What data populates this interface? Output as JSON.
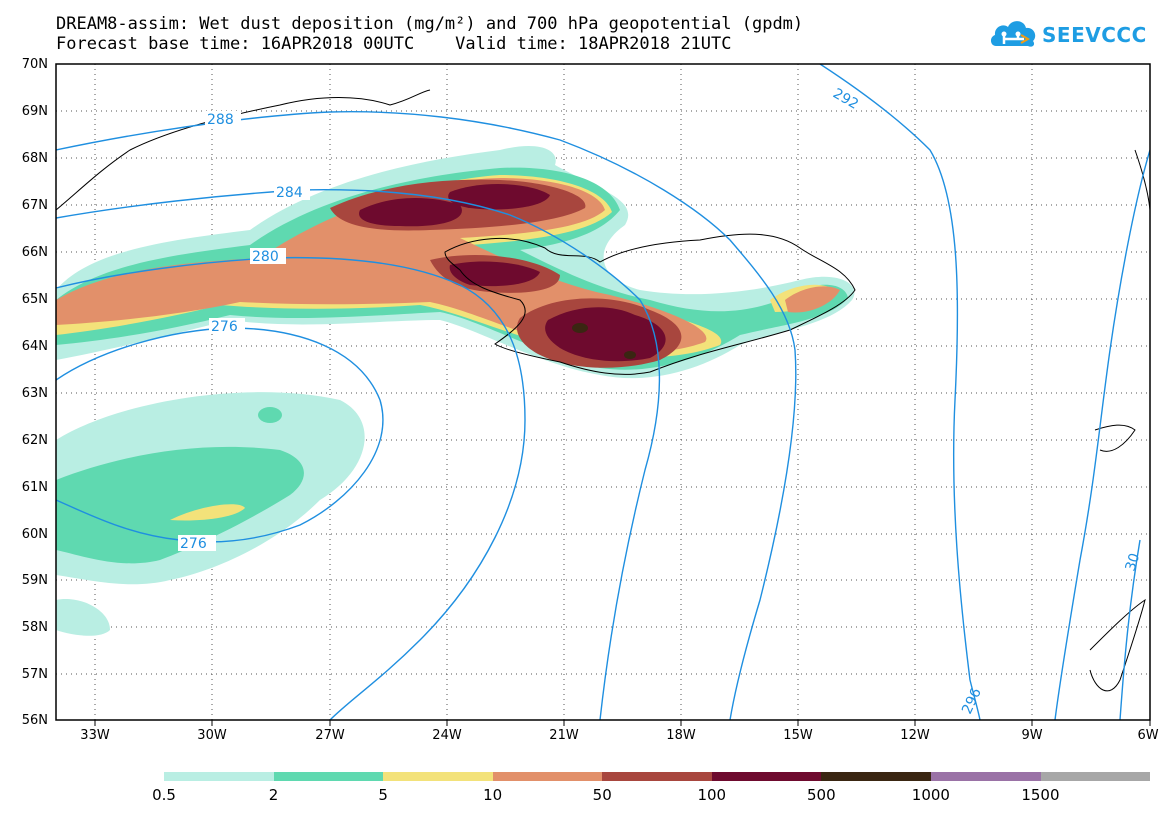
{
  "title": {
    "line1": "DREAM8-assim: Wet dust deposition (mg/m²) and 700 hPa geopotential (gpdm)",
    "line2": "Forecast base time: 16APR2018 00UTC    Valid time: 18APR2018 21UTC"
  },
  "logo": {
    "text": "SEEVCCC",
    "icon": "cloud-icon",
    "color": "#1e9de3"
  },
  "map": {
    "lat_labels": [
      "70N",
      "69N",
      "68N",
      "67N",
      "66N",
      "65N",
      "64N",
      "63N",
      "62N",
      "61N",
      "60N",
      "59N",
      "58N",
      "57N",
      "56N"
    ],
    "lon_labels": [
      "33W",
      "30W",
      "27W",
      "24W",
      "21W",
      "18W",
      "15W",
      "12W",
      "9W",
      "6W"
    ],
    "contour_labels": [
      "288",
      "284",
      "280",
      "276",
      "276",
      "292",
      "296",
      "30"
    ],
    "contour_color": "#1f8fe0"
  },
  "legend": {
    "levels": [
      "0.5",
      "2",
      "5",
      "10",
      "50",
      "100",
      "500",
      "1000",
      "1500"
    ],
    "colors": [
      "#b9eee3",
      "#5fd9b0",
      "#f3e27a",
      "#e2906a",
      "#a8463e",
      "#6e0a2e",
      "#3a2612",
      "#9a72a6",
      "#a7a7a7"
    ]
  }
}
